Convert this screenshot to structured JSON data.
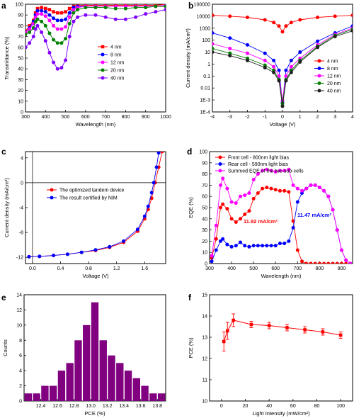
{
  "chart_data": [
    {
      "panel": "a",
      "type": "line",
      "xlabel": "Wavelength (nm)",
      "ylabel": "Transmittance (%)",
      "xlim": [
        300,
        1000
      ],
      "ylim": [
        0,
        100
      ],
      "xticks": [
        300,
        400,
        500,
        600,
        700,
        800,
        900,
        1000
      ],
      "yticks": [
        0,
        10,
        20,
        30,
        40,
        50,
        60,
        70,
        80,
        90,
        100
      ],
      "legend": "center-right",
      "x": [
        300,
        320,
        340,
        350,
        360,
        380,
        400,
        420,
        440,
        460,
        480,
        500,
        520,
        540,
        560,
        600,
        650,
        700,
        750,
        800,
        850,
        900,
        950,
        1000
      ],
      "series": [
        {
          "name": "4 nm",
          "color": "#ff0000",
          "values": [
            75,
            80,
            85,
            92,
            96,
            97,
            96,
            95,
            93,
            92,
            92,
            93,
            96,
            98,
            99,
            99,
            99,
            99,
            99,
            99,
            99,
            99,
            99,
            100
          ]
        },
        {
          "name": "8 nm",
          "color": "#0000ff",
          "values": [
            74,
            78,
            84,
            90,
            94,
            94,
            93,
            90,
            87,
            85,
            85,
            86,
            92,
            97,
            98,
            98,
            98,
            98,
            98,
            98,
            98,
            98,
            98,
            99
          ]
        },
        {
          "name": "12 nm",
          "color": "#ff00ff",
          "values": [
            74,
            77,
            82,
            88,
            91,
            91,
            89,
            85,
            80,
            77,
            77,
            79,
            88,
            95,
            97,
            98,
            98,
            98,
            98,
            98,
            98,
            98,
            98,
            99
          ]
        },
        {
          "name": "20 nm",
          "color": "#008000",
          "values": [
            72,
            74,
            78,
            84,
            86,
            84,
            80,
            73,
            67,
            64,
            64,
            68,
            82,
            92,
            95,
            97,
            97,
            97,
            96,
            96,
            97,
            97,
            98,
            98
          ]
        },
        {
          "name": "40 nm",
          "color": "#8000ff",
          "values": [
            60,
            64,
            70,
            77,
            80,
            74,
            66,
            55,
            46,
            40,
            41,
            48,
            70,
            84,
            88,
            90,
            90,
            88,
            86,
            86,
            88,
            91,
            93,
            95
          ]
        }
      ]
    },
    {
      "panel": "b",
      "type": "line",
      "scale_y": "log",
      "xlabel": "Voltage (V)",
      "ylabel": "Current density (mA/cm²)",
      "xlim": [
        -4,
        4
      ],
      "ylim": [
        0.0001,
        100000
      ],
      "xticks": [
        -4,
        -3,
        -2,
        -1,
        0,
        1,
        2,
        3,
        4
      ],
      "ytick_labels": [
        "1E-4",
        "1E-3",
        "0.01",
        "0.1",
        "1",
        "10",
        "100",
        "1000",
        "10000",
        "100000"
      ],
      "legend": "bottom-right",
      "x": [
        -4,
        -3,
        -2,
        -1,
        -0.5,
        -0.2,
        0,
        0.2,
        0.5,
        1,
        2,
        3,
        4
      ],
      "series": [
        {
          "name": "4 nm",
          "color": "#ff0000",
          "values": [
            12000,
            10000,
            8000,
            5000,
            3000,
            1500,
            500,
            1500,
            3000,
            5000,
            8000,
            10000,
            12000
          ]
        },
        {
          "name": "8 nm",
          "color": "#0000ff",
          "values": [
            400,
            150,
            40,
            8,
            2,
            0.3,
            0.0006,
            0.3,
            2,
            10,
            80,
            400,
            1500
          ]
        },
        {
          "name": "12 nm",
          "color": "#ff00ff",
          "values": [
            50,
            20,
            8,
            2,
            0.6,
            0.1,
            0.0009,
            0.1,
            0.6,
            3,
            40,
            300,
            1000
          ]
        },
        {
          "name": "20 nm",
          "color": "#008000",
          "values": [
            20,
            8,
            3,
            0.8,
            0.3,
            0.05,
            0.0005,
            0.05,
            0.3,
            2,
            30,
            250,
            800
          ]
        },
        {
          "name": "40 nm",
          "color": "#202020",
          "values": [
            10,
            5,
            2,
            0.5,
            0.2,
            0.04,
            0.0003,
            0.04,
            0.2,
            1.5,
            25,
            200,
            600
          ]
        }
      ]
    },
    {
      "panel": "c",
      "type": "line",
      "xlabel": "Voltage (V)",
      "ylabel": "Current density (mA/cm²)",
      "xlim": [
        -0.1,
        1.9
      ],
      "ylim": [
        -13,
        5
      ],
      "xticks": [
        0.0,
        0.4,
        0.8,
        1.2,
        1.6
      ],
      "xtick_labels": [
        "0.0",
        "0.4",
        "0.8",
        "1.2",
        "1.6"
      ],
      "yticks": [
        -12,
        -8,
        -4,
        0,
        4
      ],
      "legend": "upper-left",
      "series": [
        {
          "name": "The optimized tandem device",
          "color": "#ff0000",
          "x": [
            -0.05,
            0.1,
            0.3,
            0.5,
            0.7,
            0.9,
            1.1,
            1.3,
            1.5,
            1.6,
            1.65,
            1.7,
            1.75,
            1.8,
            1.85
          ],
          "values": [
            -11.9,
            -11.85,
            -11.7,
            -11.5,
            -11.2,
            -10.9,
            -10.4,
            -9.6,
            -7.8,
            -5.8,
            -4.3,
            -2.5,
            0.0,
            2.5,
            5.0
          ]
        },
        {
          "name": "The result certified by NIM",
          "color": "#0000ff",
          "x": [
            -0.05,
            0.1,
            0.3,
            0.5,
            0.7,
            0.9,
            1.1,
            1.3,
            1.5,
            1.6,
            1.65,
            1.7,
            1.73,
            1.77,
            1.8
          ],
          "values": [
            -11.9,
            -11.85,
            -11.7,
            -11.5,
            -11.2,
            -10.8,
            -10.3,
            -9.4,
            -7.5,
            -5.4,
            -3.8,
            -1.6,
            0.0,
            2.5,
            4.8
          ]
        }
      ]
    },
    {
      "panel": "d",
      "type": "line",
      "xlabel": "Wavelength (nm)",
      "ylabel": "EQE (%)",
      "xlim": [
        300,
        950
      ],
      "ylim": [
        0,
        100
      ],
      "xticks": [
        300,
        400,
        500,
        600,
        700,
        800,
        900
      ],
      "yticks": [
        0,
        10,
        20,
        30,
        40,
        50,
        60,
        70,
        80,
        90,
        100
      ],
      "legend": "top-right",
      "annotations": [
        {
          "text": "11.92 mA/cm²",
          "color": "#ff0000"
        },
        {
          "text": "11.47 mA/cm²",
          "color": "#0000ff"
        }
      ],
      "series": [
        {
          "name": "Front cell - 800nm light bias",
          "color": "#ff0000",
          "x": [
            310,
            330,
            350,
            360,
            380,
            400,
            420,
            440,
            460,
            480,
            500,
            520,
            540,
            560,
            580,
            600,
            620,
            640,
            660,
            680,
            700,
            720,
            740,
            760,
            780,
            800,
            820,
            840,
            860,
            880,
            900,
            920,
            940
          ],
          "values": [
            5,
            22,
            50,
            53,
            49,
            40,
            37,
            40,
            44,
            47,
            58,
            63,
            67,
            68,
            67,
            66,
            65,
            65,
            64,
            38,
            12,
            2,
            0,
            0,
            0,
            0,
            0,
            0,
            0,
            0,
            0,
            0,
            0
          ]
        },
        {
          "name": "Rear cell - 590nm light bias",
          "color": "#0000ff",
          "x": [
            310,
            330,
            350,
            360,
            380,
            400,
            420,
            440,
            460,
            480,
            500,
            520,
            540,
            560,
            580,
            600,
            620,
            640,
            660,
            680,
            700,
            720,
            740,
            760,
            780,
            800,
            820,
            840,
            860,
            880,
            900,
            920,
            940
          ],
          "values": [
            2,
            12,
            20,
            22,
            17,
            15,
            16,
            19,
            16,
            15,
            16,
            16,
            16,
            16,
            16,
            16,
            18,
            18,
            20,
            32,
            55,
            63,
            67,
            70,
            70,
            68,
            65,
            60,
            48,
            30,
            12,
            3,
            0
          ]
        },
        {
          "name": "Summed EQE of the two sub-cells",
          "color": "#ff00ff",
          "x": [
            310,
            330,
            350,
            360,
            380,
            400,
            420,
            440,
            460,
            480,
            500,
            520,
            540,
            560,
            580,
            600,
            620,
            640,
            660,
            680,
            700,
            720,
            740,
            760,
            780,
            800,
            820,
            840,
            860,
            880,
            900,
            920,
            940
          ],
          "values": [
            7,
            34,
            70,
            76,
            67,
            55,
            54,
            60,
            61,
            63,
            75,
            80,
            83,
            84,
            83,
            82,
            83,
            83,
            84,
            70,
            67,
            65,
            67,
            70,
            70,
            68,
            65,
            60,
            48,
            30,
            12,
            3,
            0
          ]
        }
      ]
    },
    {
      "panel": "e",
      "type": "bar",
      "xlabel": "PCE (%)",
      "ylabel": "Counts",
      "xlim": [
        12.2,
        13.9
      ],
      "ylim": [
        0,
        14
      ],
      "xticks": [
        12.4,
        12.6,
        12.8,
        13.0,
        13.2,
        13.4,
        13.6,
        13.8
      ],
      "xtick_labels": [
        "12.4",
        "12.6",
        "12.8",
        "13.0",
        "13.2",
        "13.4",
        "13.6",
        "13.8"
      ],
      "yticks": [
        0,
        2,
        4,
        6,
        8,
        10,
        12,
        14
      ],
      "bar_color": "#800080",
      "categories": [
        12.25,
        12.35,
        12.45,
        12.55,
        12.65,
        12.75,
        12.85,
        12.95,
        13.05,
        13.15,
        13.25,
        13.35,
        13.45,
        13.55,
        13.65,
        13.75,
        13.85
      ],
      "values": [
        1,
        1,
        2,
        2,
        4,
        5,
        8,
        10,
        13,
        8,
        6,
        5,
        4,
        3,
        2,
        1,
        1
      ]
    },
    {
      "panel": "f",
      "type": "scatter",
      "xlabel": "Light Intensity (mW/cm²)",
      "ylabel": "PCE (%)",
      "xlim": [
        -10,
        110
      ],
      "ylim": [
        10,
        15
      ],
      "xticks": [
        0,
        20,
        40,
        60,
        80,
        100
      ],
      "yticks": [
        10,
        11,
        12,
        13,
        14,
        15
      ],
      "color": "#ff0000",
      "x": [
        2,
        5,
        10,
        25,
        40,
        55,
        70,
        85,
        100
      ],
      "values": [
        12.8,
        13.3,
        13.8,
        13.6,
        13.55,
        13.45,
        13.35,
        13.25,
        13.1
      ],
      "errors": [
        0.45,
        0.4,
        0.3,
        0.15,
        0.15,
        0.15,
        0.15,
        0.15,
        0.15
      ]
    }
  ]
}
